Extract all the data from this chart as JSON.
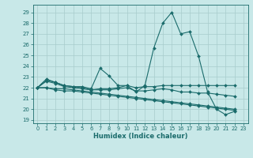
{
  "xlabel": "Humidex (Indice chaleur)",
  "xlim": [
    -0.5,
    23.5
  ],
  "ylim": [
    18.7,
    29.7
  ],
  "yticks": [
    19,
    20,
    21,
    22,
    23,
    24,
    25,
    26,
    27,
    28,
    29
  ],
  "xticks": [
    0,
    1,
    2,
    3,
    4,
    5,
    6,
    7,
    8,
    9,
    10,
    11,
    12,
    13,
    14,
    15,
    16,
    17,
    18,
    19,
    20,
    21,
    22,
    23
  ],
  "background_color": "#c8e8e8",
  "grid_color": "#a8cccc",
  "line_color": "#1a6b6b",
  "series": [
    [
      22.0,
      22.8,
      22.5,
      22.2,
      22.1,
      22.1,
      21.9,
      23.8,
      23.1,
      22.2,
      22.2,
      21.6,
      22.2,
      25.7,
      28.0,
      29.0,
      27.0,
      27.2,
      24.9,
      21.6,
      20.0,
      19.5,
      19.8,
      null
    ],
    [
      22.0,
      22.7,
      22.5,
      22.2,
      22.1,
      22.0,
      21.8,
      21.9,
      21.9,
      22.0,
      22.2,
      22.0,
      22.1,
      22.1,
      22.2,
      22.2,
      22.2,
      22.2,
      22.2,
      22.2,
      22.2,
      22.2,
      22.2,
      null
    ],
    [
      22.0,
      22.6,
      22.4,
      22.1,
      22.0,
      21.9,
      21.8,
      21.8,
      21.8,
      21.9,
      22.0,
      21.7,
      21.7,
      21.8,
      21.9,
      21.8,
      21.6,
      21.6,
      21.5,
      21.5,
      21.4,
      21.3,
      21.2,
      null
    ],
    [
      22.0,
      22.0,
      21.8,
      21.7,
      21.7,
      21.6,
      21.5,
      21.4,
      21.3,
      21.2,
      21.1,
      21.0,
      20.9,
      20.8,
      20.7,
      20.6,
      20.5,
      20.4,
      20.3,
      20.2,
      20.1,
      20.0,
      19.9,
      null
    ],
    [
      22.0,
      22.0,
      21.9,
      21.9,
      21.8,
      21.7,
      21.6,
      21.5,
      21.4,
      21.3,
      21.2,
      21.1,
      21.0,
      20.9,
      20.8,
      20.7,
      20.6,
      20.5,
      20.4,
      20.3,
      20.2,
      20.1,
      20.0,
      null
    ]
  ]
}
